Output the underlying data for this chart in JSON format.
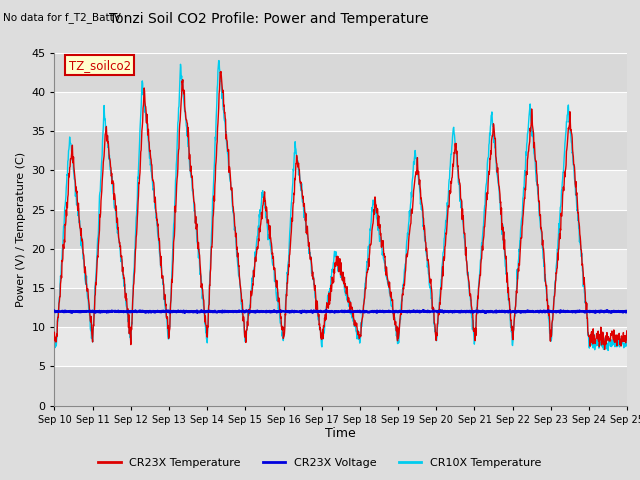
{
  "title": "Tonzi Soil CO2 Profile: Power and Temperature",
  "subtitle": "No data for f_T2_BattV",
  "ylabel": "Power (V) / Temperature (C)",
  "xlabel": "Time",
  "ylim": [
    0,
    45
  ],
  "yticks": [
    0,
    5,
    10,
    15,
    20,
    25,
    30,
    35,
    40,
    45
  ],
  "x_tick_labels": [
    "Sep 10",
    "Sep 11",
    "Sep 12",
    "Sep 13",
    "Sep 14",
    "Sep 15",
    "Sep 16",
    "Sep 17",
    "Sep 18",
    "Sep 19",
    "Sep 20",
    "Sep 21",
    "Sep 22",
    "Sep 23",
    "Sep 24",
    "Sep 25"
  ],
  "legend_label_box": "TZ_soilco2",
  "legend_items": [
    "CR23X Temperature",
    "CR23X Voltage",
    "CR10X Temperature"
  ],
  "cr23x_color": "#dd0000",
  "voltage_color": "#0000dd",
  "cr10x_color": "#00ccee",
  "bg_color": "#dddddd",
  "plot_bg_color": "#ebebeb",
  "grid_color": "#ffffff",
  "voltage_level": 12.0,
  "trough_level": 8.5,
  "peak_heights": [
    33,
    36,
    40,
    42,
    43,
    27,
    32,
    19,
    26,
    31,
    34,
    36,
    37,
    37
  ],
  "peak_days": [
    0.45,
    1.35,
    2.35,
    3.35,
    4.35,
    5.5,
    6.35,
    7.4,
    8.4,
    9.5,
    10.5,
    11.5,
    12.5,
    13.5
  ],
  "trough_days": [
    0.05,
    1.0,
    2.0,
    3.0,
    4.0,
    5.0,
    6.0,
    7.0,
    8.0,
    9.0,
    10.0,
    11.0,
    12.0,
    13.0,
    14.0
  ]
}
